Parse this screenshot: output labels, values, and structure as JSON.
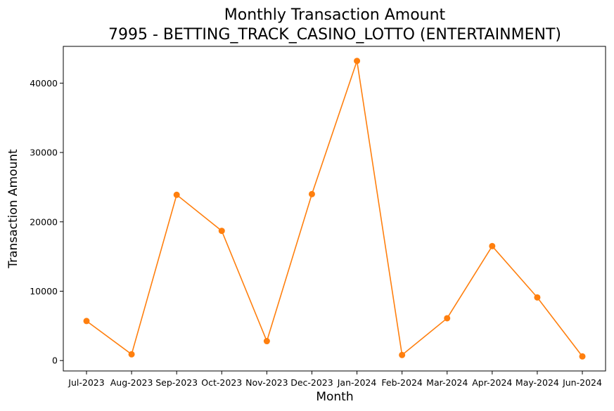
{
  "chart_data": {
    "type": "line",
    "title_line1": "Monthly Transaction Amount",
    "title_line2": "7995 - BETTING_TRACK_CASINO_LOTTO (ENTERTAINMENT)",
    "xlabel": "Month",
    "ylabel": "Transaction Amount",
    "categories": [
      "Jul-2023",
      "Aug-2023",
      "Sep-2023",
      "Oct-2023",
      "Nov-2023",
      "Dec-2023",
      "Jan-2024",
      "Feb-2024",
      "Mar-2024",
      "Apr-2024",
      "May-2024",
      "Jun-2024"
    ],
    "values": [
      5700,
      900,
      23900,
      18700,
      2800,
      24000,
      43200,
      800,
      6100,
      16500,
      9100,
      600
    ],
    "yticks": [
      0,
      10000,
      20000,
      30000,
      40000
    ],
    "ylim": [
      -1500,
      45300
    ],
    "grid": false,
    "color": "#ff7f0e"
  }
}
